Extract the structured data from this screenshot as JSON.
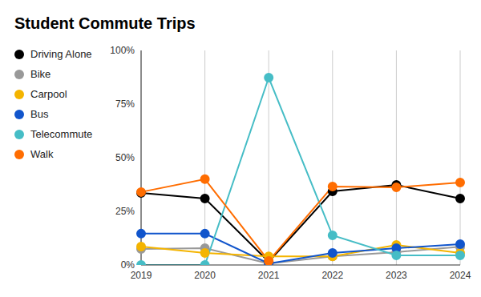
{
  "chart_data": {
    "type": "line",
    "title": "Student Commute Trips",
    "categories": [
      "2019",
      "2020",
      "2021",
      "2022",
      "2023",
      "2024"
    ],
    "series": [
      {
        "name": "Driving Alone",
        "color": "#000000",
        "values": [
          33.6,
          31,
          1.5,
          34.3,
          37.3,
          31
        ]
      },
      {
        "name": "Bike",
        "color": "#999999",
        "values": [
          7.5,
          7.8,
          0.7,
          4,
          6,
          8.5
        ]
      },
      {
        "name": "Carpool",
        "color": "#f4b400",
        "values": [
          8.6,
          5.6,
          4,
          4,
          9.3,
          5.6
        ]
      },
      {
        "name": "Bus",
        "color": "#1155cc",
        "values": [
          14.6,
          14.6,
          0.7,
          5.6,
          7.8,
          9.7
        ]
      },
      {
        "name": "Telecommute",
        "color": "#46bdc6",
        "values": [
          0,
          0,
          87.3,
          13.8,
          4.5,
          4.5
        ]
      },
      {
        "name": "Walk",
        "color": "#ff6d01",
        "values": [
          34,
          40,
          1.9,
          36.6,
          36.2,
          38.4
        ]
      }
    ],
    "ylim": [
      0,
      100
    ],
    "yticks": [
      {
        "value": 0,
        "label": "0%"
      },
      {
        "value": 25,
        "label": "25%"
      },
      {
        "value": 50,
        "label": "50%"
      },
      {
        "value": 75,
        "label": "75%"
      },
      {
        "value": 100,
        "label": "100%"
      }
    ],
    "grid": true,
    "legend": "left",
    "marker": "circle"
  }
}
